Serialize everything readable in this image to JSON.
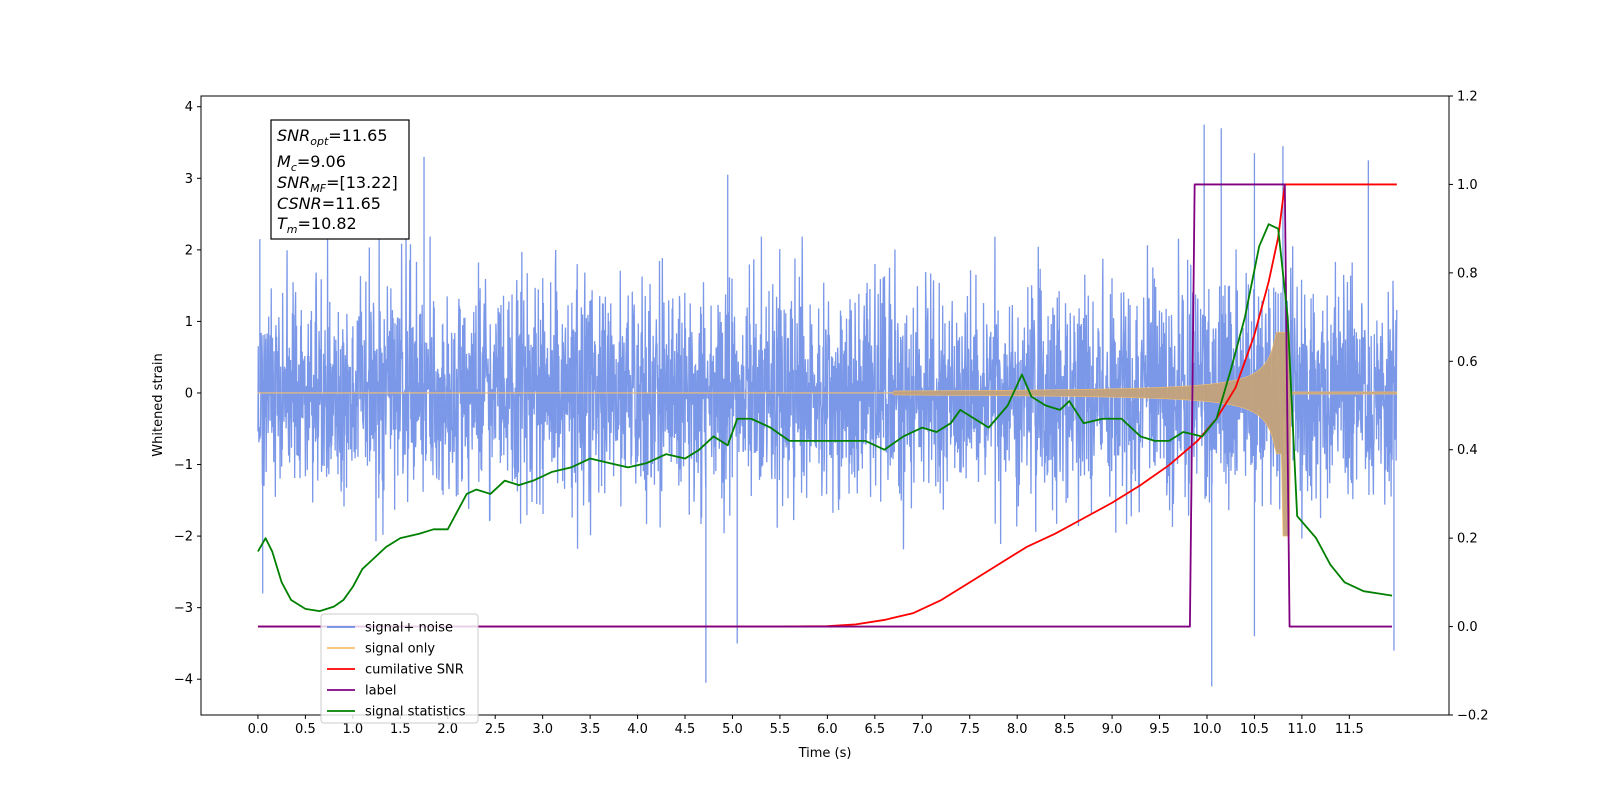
{
  "chart_data": {
    "type": "line",
    "xlabel": "Time (s)",
    "ylabel": "Whitened strain",
    "xlim": [
      -0.6,
      12.55
    ],
    "ylim": [
      -4.5,
      4.15
    ],
    "y2lim": [
      -0.2,
      1.2
    ],
    "x_ticks": [
      "0.0",
      "0.5",
      "1.0",
      "1.5",
      "2.0",
      "2.5",
      "3.0",
      "3.5",
      "4.0",
      "4.5",
      "5.0",
      "5.5",
      "6.0",
      "6.5",
      "7.0",
      "7.5",
      "8.0",
      "8.5",
      "9.0",
      "9.5",
      "10.0",
      "10.5",
      "11.0",
      "11.5"
    ],
    "y_ticks": [
      "4",
      "3",
      "2",
      "1",
      "0",
      "−1",
      "−2",
      "−3",
      "−4"
    ],
    "y2_ticks": [
      "1.2",
      "1.0",
      "0.8",
      "0.6",
      "0.4",
      "0.2",
      "0.0",
      "−0.2"
    ],
    "grid": false,
    "legend_position": "lower-left",
    "colors": {
      "noise": "#6b8ce6",
      "signal": "#f5c06e",
      "signal_fill": "#c4a27a",
      "snr": "#ff0000",
      "label": "#800080",
      "statistics": "#008000"
    },
    "stats_box": {
      "snr_opt": {
        "base": "SNR",
        "sub": "opt",
        "value": "=11.65"
      },
      "mc": {
        "base": "M",
        "sub": "c",
        "value": "=9.06"
      },
      "snr_mf": {
        "base": "SNR",
        "sub": "MF",
        "value": "=[13.22]"
      },
      "csnr": {
        "base": "CSNR",
        "value": "=11.65"
      },
      "tm": {
        "base": "T",
        "sub": "m",
        "value": "=10.82"
      }
    },
    "noise_envelope": {
      "x": [
        0.0,
        12.0
      ],
      "upper_typical": 1.9,
      "lower_typical": -1.9,
      "peaks_up": [
        [
          0.02,
          2.15
        ],
        [
          1.75,
          3.3
        ],
        [
          4.95,
          3.05
        ],
        [
          9.97,
          3.75
        ],
        [
          10.15,
          3.7
        ],
        [
          10.5,
          3.35
        ],
        [
          10.8,
          3.45
        ],
        [
          11.7,
          3.25
        ]
      ],
      "peaks_down": [
        [
          0.05,
          -2.8
        ],
        [
          4.72,
          -4.05
        ],
        [
          5.05,
          -3.5
        ],
        [
          10.05,
          -4.1
        ],
        [
          10.5,
          -3.4
        ],
        [
          11.97,
          -3.6
        ]
      ]
    },
    "signal_only": {
      "start": 6.7,
      "merger": 10.82,
      "peak_amplitude": 0.85,
      "end_depth": -2.0
    },
    "series": [
      {
        "name": "cumilative SNR",
        "axis": "right",
        "x": [
          0.0,
          5.5,
          6.0,
          6.3,
          6.6,
          6.9,
          7.2,
          7.5,
          7.8,
          8.1,
          8.4,
          8.7,
          9.0,
          9.3,
          9.6,
          9.9,
          10.1,
          10.3,
          10.5,
          10.65,
          10.75,
          10.82,
          10.9,
          12.0
        ],
        "y": [
          0.0,
          0.0,
          0.001,
          0.005,
          0.015,
          0.03,
          0.06,
          0.1,
          0.14,
          0.18,
          0.21,
          0.245,
          0.28,
          0.32,
          0.365,
          0.42,
          0.47,
          0.54,
          0.66,
          0.78,
          0.88,
          1.0,
          1.0,
          1.0
        ]
      },
      {
        "name": "label",
        "axis": "right",
        "x": [
          0.0,
          9.82,
          9.87,
          10.82,
          10.87,
          11.95
        ],
        "y": [
          0.0,
          0.0,
          1.0,
          1.0,
          0.0,
          0.0
        ]
      },
      {
        "name": "signal statistics",
        "axis": "right",
        "x": [
          0.0,
          0.08,
          0.15,
          0.25,
          0.35,
          0.5,
          0.65,
          0.8,
          0.9,
          1.0,
          1.1,
          1.2,
          1.35,
          1.5,
          1.7,
          1.85,
          2.0,
          2.1,
          2.2,
          2.3,
          2.45,
          2.6,
          2.75,
          2.9,
          3.1,
          3.3,
          3.5,
          3.7,
          3.9,
          4.1,
          4.3,
          4.5,
          4.65,
          4.8,
          4.95,
          5.05,
          5.2,
          5.4,
          5.6,
          5.8,
          6.0,
          6.2,
          6.4,
          6.6,
          6.8,
          7.0,
          7.15,
          7.3,
          7.4,
          7.55,
          7.7,
          7.9,
          8.05,
          8.15,
          8.3,
          8.45,
          8.55,
          8.7,
          8.9,
          9.1,
          9.3,
          9.45,
          9.6,
          9.75,
          9.95,
          10.1,
          10.25,
          10.4,
          10.55,
          10.65,
          10.75,
          10.85,
          10.95,
          11.15,
          11.3,
          11.45,
          11.65,
          11.8,
          11.95
        ],
        "y": [
          0.17,
          0.2,
          0.17,
          0.1,
          0.06,
          0.04,
          0.035,
          0.045,
          0.06,
          0.09,
          0.13,
          0.15,
          0.18,
          0.2,
          0.21,
          0.22,
          0.22,
          0.26,
          0.3,
          0.31,
          0.3,
          0.33,
          0.32,
          0.33,
          0.35,
          0.36,
          0.38,
          0.37,
          0.36,
          0.37,
          0.39,
          0.38,
          0.4,
          0.43,
          0.41,
          0.47,
          0.47,
          0.45,
          0.42,
          0.42,
          0.42,
          0.42,
          0.42,
          0.4,
          0.43,
          0.45,
          0.44,
          0.46,
          0.49,
          0.47,
          0.45,
          0.5,
          0.57,
          0.52,
          0.5,
          0.49,
          0.51,
          0.46,
          0.47,
          0.47,
          0.43,
          0.42,
          0.42,
          0.44,
          0.43,
          0.47,
          0.58,
          0.7,
          0.86,
          0.91,
          0.9,
          0.7,
          0.25,
          0.2,
          0.14,
          0.1,
          0.08,
          0.075,
          0.07
        ]
      }
    ],
    "legend": [
      {
        "label": "signal+ noise",
        "color_key": "noise"
      },
      {
        "label": "signal only",
        "color_key": "signal"
      },
      {
        "label": "cumilative SNR",
        "color_key": "snr"
      },
      {
        "label": "label",
        "color_key": "label"
      },
      {
        "label": "signal statistics",
        "color_key": "statistics"
      }
    ]
  }
}
